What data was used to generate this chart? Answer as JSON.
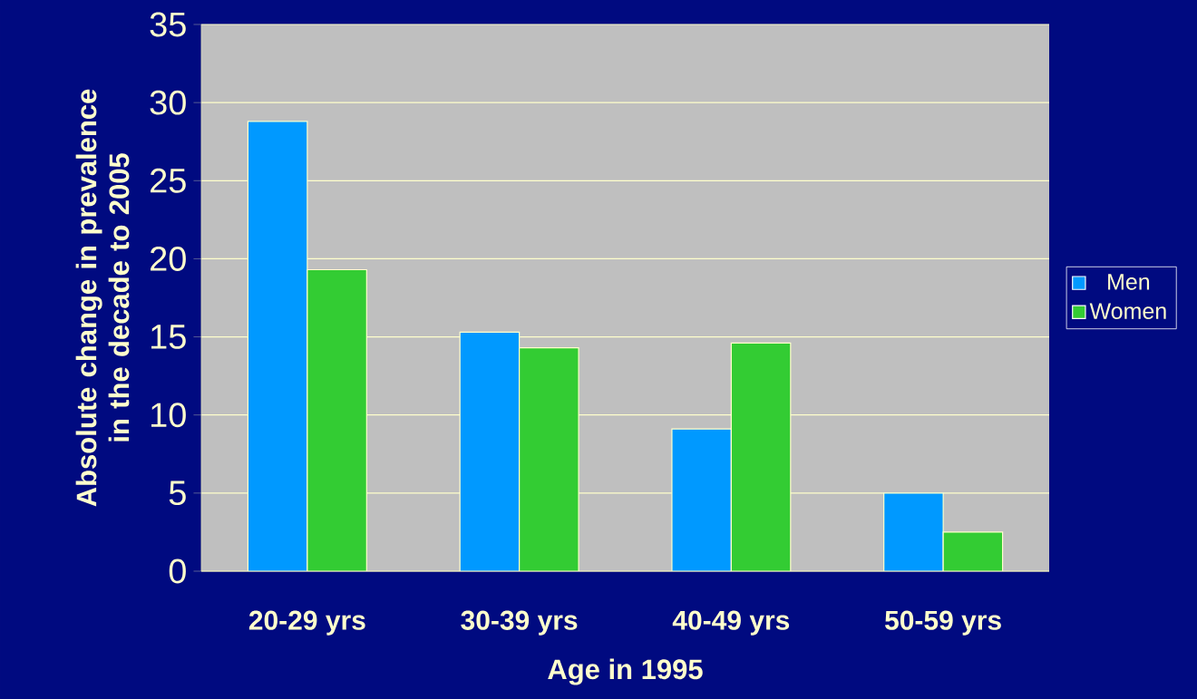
{
  "chart_data": {
    "type": "bar",
    "xlabel": "Age in 1995",
    "ylabel": "Absolute change in prevalence in the decade to 2005",
    "categories": [
      "20-29 yrs",
      "30-39 yrs",
      "40-49 yrs",
      "50-59 yrs"
    ],
    "series": [
      {
        "name": "Men",
        "color": "#0099ff",
        "values": [
          28.8,
          15.3,
          9.1,
          5.0
        ]
      },
      {
        "name": "Women",
        "color": "#33cc33",
        "values": [
          19.3,
          14.3,
          14.6,
          2.5
        ]
      }
    ],
    "ylim": [
      0,
      35
    ],
    "yticks": [
      0,
      5,
      10,
      15,
      20,
      25,
      30,
      35
    ],
    "grid": "y",
    "legend": "right"
  }
}
